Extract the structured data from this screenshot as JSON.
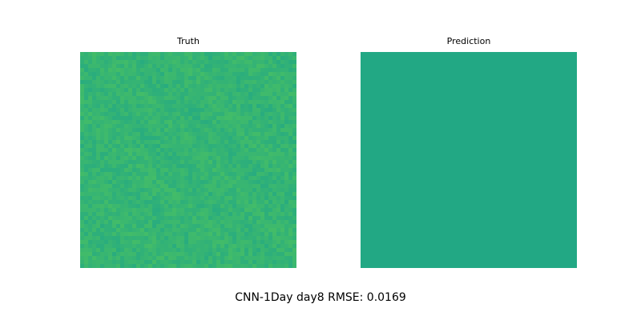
{
  "figure": {
    "suptitle": "CNN-1Day day8 RMSE: 0.0169"
  },
  "chart_data": [
    {
      "type": "heatmap",
      "title": "Truth",
      "colormap": "viridis",
      "grid_size": [
        54,
        54
      ],
      "axes_visible": false,
      "base_color": "#2cae78",
      "texture": "noisy",
      "value_note_color_range": [
        "#22a884",
        "#4ec35f"
      ]
    },
    {
      "type": "heatmap",
      "title": "Prediction",
      "colormap": "viridis",
      "grid_size": [
        54,
        54
      ],
      "axes_visible": false,
      "base_color": "#22a884",
      "texture": "uniform"
    }
  ]
}
